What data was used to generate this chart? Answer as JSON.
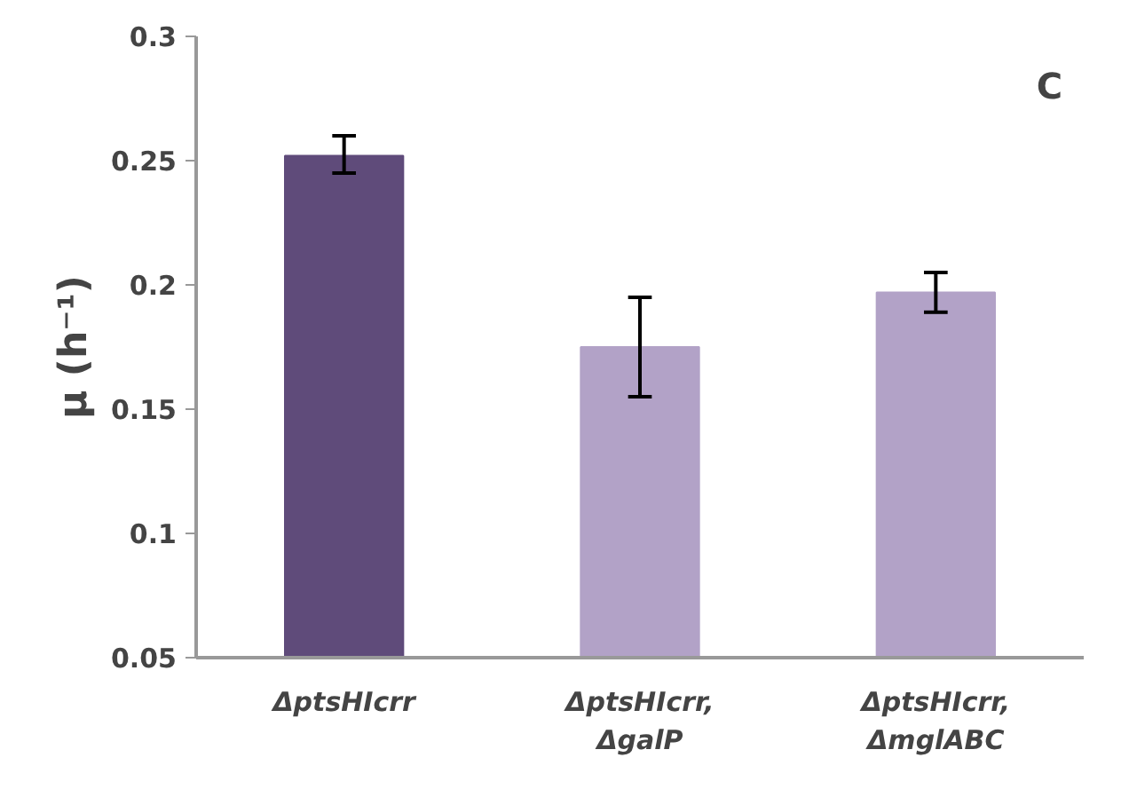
{
  "chart_data": {
    "type": "bar",
    "ylabel": "μ (h⁻¹)",
    "categories": [
      "ΔptsHIcrr",
      "ΔptsHIcrr,\nΔgalP",
      "ΔptsHIcrr,\nΔmglABC"
    ],
    "values": [
      0.252,
      0.175,
      0.197
    ],
    "colors": [
      "#5f4b7a",
      "#b2a2c7",
      "#b2a2c7"
    ],
    "errors": [
      [
        0.245,
        0.26
      ],
      [
        0.155,
        0.195
      ],
      [
        0.189,
        0.205
      ]
    ],
    "ylim": [
      0.05,
      0.3
    ],
    "yticks": [
      0.05,
      0.1,
      0.15,
      0.2,
      0.25,
      0.3
    ],
    "grid": false,
    "annotations": [
      "C"
    ]
  }
}
